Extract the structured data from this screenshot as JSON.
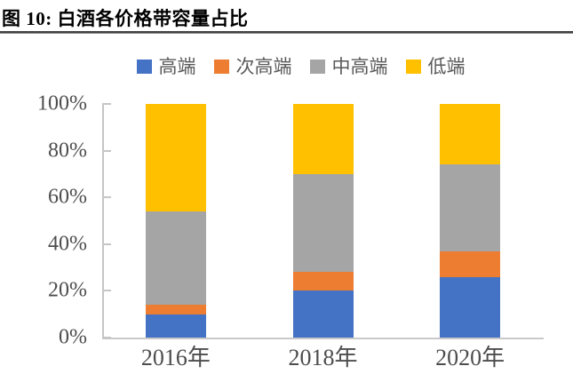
{
  "figure": {
    "title": "图 10:  白酒各价格带容量占比"
  },
  "chart_data": {
    "type": "bar",
    "variant": "stacked-100",
    "title": "白酒各价格带容量占比",
    "categories": [
      "2016年",
      "2018年",
      "2020年"
    ],
    "series": [
      {
        "name": "高端",
        "color": "#4472C4",
        "values": [
          10,
          20,
          26
        ]
      },
      {
        "name": "次高端",
        "color": "#ED7D31",
        "values": [
          4,
          8,
          11
        ]
      },
      {
        "name": "中高端",
        "color": "#A5A5A5",
        "values": [
          40,
          42,
          37
        ]
      },
      {
        "name": "低端",
        "color": "#FFC000",
        "values": [
          46,
          30,
          26
        ]
      }
    ],
    "xlabel": "",
    "ylabel": "",
    "ylim": [
      0,
      100
    ],
    "yticks": [
      {
        "value": 100,
        "label": "100%"
      },
      {
        "value": 80,
        "label": "80%"
      },
      {
        "value": 60,
        "label": "60%"
      },
      {
        "value": 40,
        "label": "40%"
      },
      {
        "value": 20,
        "label": "20%"
      },
      {
        "value": 0,
        "label": "0%"
      }
    ],
    "legend_position": "top",
    "grid": false,
    "axis_color": "#c6c6c6",
    "label_color": "#4d4d4d"
  }
}
